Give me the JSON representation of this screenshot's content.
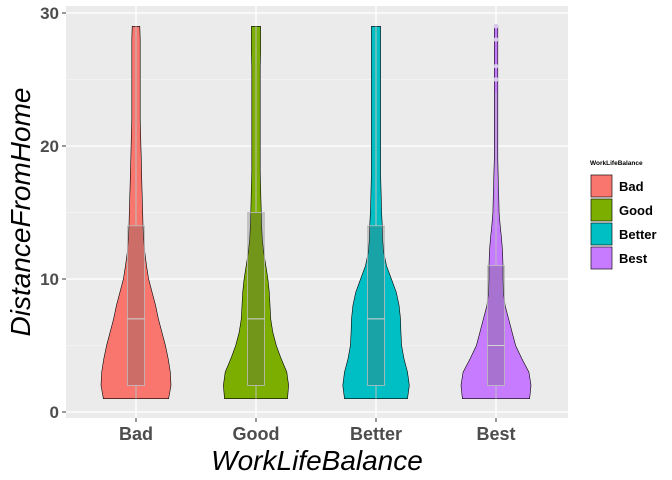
{
  "chart_data": {
    "type": "violin",
    "xlabel": "WorkLifeBalance",
    "ylabel": "DistanceFromHome",
    "ylim": [
      0,
      29
    ],
    "yticks": [
      0,
      10,
      20,
      30
    ],
    "grid": true,
    "legend": {
      "title": "WorkLifeBalance",
      "position": "right"
    },
    "categories": [
      "Bad",
      "Good",
      "Better",
      "Best"
    ],
    "series": [
      {
        "name": "Bad",
        "color": "#F8766D",
        "boxplot": {
          "min": 1,
          "q1": 2,
          "median": 7,
          "q3": 14,
          "max": 29,
          "outliers": []
        },
        "density": [
          [
            1,
            0.93
          ],
          [
            2,
            1.0
          ],
          [
            3,
            0.98
          ],
          [
            4,
            0.92
          ],
          [
            5,
            0.84
          ],
          [
            6,
            0.74
          ],
          [
            7,
            0.64
          ],
          [
            8,
            0.56
          ],
          [
            9,
            0.46
          ],
          [
            10,
            0.36
          ],
          [
            11,
            0.3
          ],
          [
            12,
            0.25
          ],
          [
            13,
            0.22
          ],
          [
            14,
            0.2
          ],
          [
            15,
            0.19
          ],
          [
            16,
            0.18
          ],
          [
            17,
            0.17
          ],
          [
            18,
            0.16
          ],
          [
            19,
            0.15
          ],
          [
            20,
            0.14
          ],
          [
            21,
            0.13
          ],
          [
            22,
            0.12
          ],
          [
            23,
            0.12
          ],
          [
            24,
            0.12
          ],
          [
            25,
            0.12
          ],
          [
            26,
            0.12
          ],
          [
            27,
            0.12
          ],
          [
            28,
            0.12
          ],
          [
            29,
            0.11
          ]
        ]
      },
      {
        "name": "Good",
        "color": "#7CAE00",
        "boxplot": {
          "min": 1,
          "q1": 2,
          "median": 7,
          "q3": 15,
          "max": 29,
          "outliers": []
        },
        "density": [
          [
            1,
            0.9
          ],
          [
            2,
            0.93
          ],
          [
            3,
            0.88
          ],
          [
            4,
            0.72
          ],
          [
            5,
            0.58
          ],
          [
            6,
            0.48
          ],
          [
            7,
            0.42
          ],
          [
            8,
            0.4
          ],
          [
            9,
            0.38
          ],
          [
            10,
            0.34
          ],
          [
            11,
            0.28
          ],
          [
            12,
            0.22
          ],
          [
            13,
            0.18
          ],
          [
            14,
            0.16
          ],
          [
            15,
            0.15
          ],
          [
            16,
            0.14
          ],
          [
            17,
            0.13
          ],
          [
            18,
            0.12
          ],
          [
            19,
            0.12
          ],
          [
            20,
            0.12
          ],
          [
            21,
            0.12
          ],
          [
            22,
            0.12
          ],
          [
            23,
            0.12
          ],
          [
            24,
            0.12
          ],
          [
            25,
            0.12
          ],
          [
            26,
            0.12
          ],
          [
            27,
            0.13
          ],
          [
            28,
            0.13
          ],
          [
            29,
            0.13
          ]
        ]
      },
      {
        "name": "Better",
        "color": "#00BFC4",
        "boxplot": {
          "min": 1,
          "q1": 2,
          "median": 7,
          "q3": 14,
          "max": 29,
          "outliers": []
        },
        "density": [
          [
            1,
            0.9
          ],
          [
            2,
            0.95
          ],
          [
            3,
            0.9
          ],
          [
            4,
            0.8
          ],
          [
            5,
            0.73
          ],
          [
            6,
            0.71
          ],
          [
            7,
            0.7
          ],
          [
            8,
            0.66
          ],
          [
            9,
            0.58
          ],
          [
            10,
            0.44
          ],
          [
            11,
            0.3
          ],
          [
            12,
            0.22
          ],
          [
            13,
            0.19
          ],
          [
            14,
            0.18
          ],
          [
            15,
            0.16
          ],
          [
            16,
            0.15
          ],
          [
            17,
            0.14
          ],
          [
            18,
            0.13
          ],
          [
            19,
            0.13
          ],
          [
            20,
            0.13
          ],
          [
            21,
            0.13
          ],
          [
            22,
            0.13
          ],
          [
            23,
            0.13
          ],
          [
            24,
            0.13
          ],
          [
            25,
            0.13
          ],
          [
            26,
            0.13
          ],
          [
            27,
            0.13
          ],
          [
            28,
            0.13
          ],
          [
            29,
            0.13
          ]
        ]
      },
      {
        "name": "Best",
        "color": "#C77CFF",
        "boxplot": {
          "min": 1,
          "q1": 2,
          "median": 5,
          "q3": 11,
          "max": 24,
          "outliers": [
            25,
            26,
            28,
            29
          ]
        },
        "density": [
          [
            1,
            0.96
          ],
          [
            2,
            1.0
          ],
          [
            3,
            0.94
          ],
          [
            4,
            0.74
          ],
          [
            5,
            0.56
          ],
          [
            6,
            0.46
          ],
          [
            7,
            0.36
          ],
          [
            8,
            0.26
          ],
          [
            9,
            0.21
          ],
          [
            10,
            0.2
          ],
          [
            11,
            0.2
          ],
          [
            12,
            0.19
          ],
          [
            13,
            0.16
          ],
          [
            14,
            0.12
          ],
          [
            15,
            0.09
          ],
          [
            16,
            0.08
          ],
          [
            17,
            0.07
          ],
          [
            18,
            0.06
          ],
          [
            19,
            0.05
          ],
          [
            20,
            0.05
          ],
          [
            21,
            0.05
          ],
          [
            22,
            0.05
          ],
          [
            23,
            0.05
          ],
          [
            24,
            0.05
          ],
          [
            25,
            0.05
          ],
          [
            26,
            0.05
          ],
          [
            27,
            0.05
          ],
          [
            28,
            0.05
          ],
          [
            29,
            0.05
          ]
        ]
      }
    ]
  }
}
